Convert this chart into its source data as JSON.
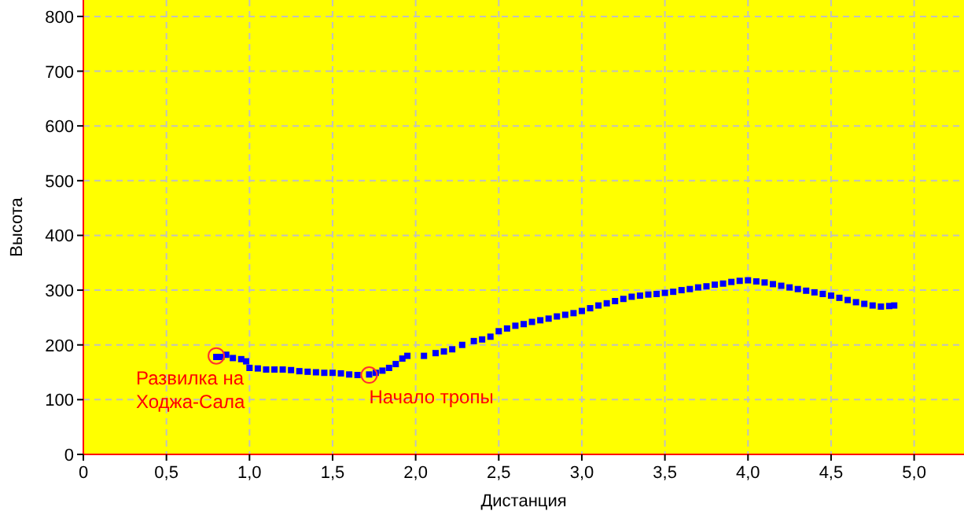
{
  "chart_data": {
    "type": "scatter",
    "xlabel": "Дистанция",
    "ylabel": "Высота",
    "xlim": [
      0,
      5.3
    ],
    "ylim": [
      0,
      830
    ],
    "xticks": [
      0,
      {
        "value": 0.5,
        "label": "0,5"
      },
      {
        "value": 1,
        "label": "1,0"
      },
      {
        "value": 1.5,
        "label": "1,5"
      },
      {
        "value": 2,
        "label": "2,0"
      },
      {
        "value": 2.5,
        "label": "2,5"
      },
      {
        "value": 3,
        "label": "3,0"
      },
      {
        "value": 3.5,
        "label": "3,5"
      },
      {
        "value": 4,
        "label": "4,0"
      },
      {
        "value": 4.5,
        "label": "4,5"
      },
      {
        "value": 5,
        "label": "5,0"
      }
    ],
    "yticks": [
      0,
      100,
      200,
      300,
      400,
      500,
      600,
      700,
      800
    ],
    "grid": true,
    "marker": "square",
    "x": [
      0.8,
      0.83,
      0.86,
      0.9,
      0.95,
      0.98,
      1.0,
      1.05,
      1.1,
      1.15,
      1.2,
      1.25,
      1.3,
      1.35,
      1.4,
      1.45,
      1.5,
      1.55,
      1.6,
      1.65,
      1.72,
      1.76,
      1.8,
      1.84,
      1.88,
      1.92,
      1.95,
      2.05,
      2.12,
      2.17,
      2.22,
      2.28,
      2.35,
      2.4,
      2.45,
      2.5,
      2.55,
      2.6,
      2.65,
      2.7,
      2.75,
      2.8,
      2.85,
      2.9,
      2.95,
      3.0,
      3.05,
      3.1,
      3.15,
      3.2,
      3.25,
      3.3,
      3.35,
      3.4,
      3.45,
      3.5,
      3.55,
      3.6,
      3.65,
      3.7,
      3.75,
      3.8,
      3.85,
      3.9,
      3.95,
      4.0,
      4.05,
      4.1,
      4.15,
      4.2,
      4.25,
      4.3,
      4.35,
      4.4,
      4.45,
      4.5,
      4.55,
      4.6,
      4.65,
      4.7,
      4.75,
      4.8,
      4.85,
      4.88
    ],
    "series": [
      {
        "color": "#0000ff",
        "values": [
          178,
          178,
          182,
          176,
          174,
          170,
          158,
          157,
          155,
          155,
          155,
          154,
          152,
          151,
          150,
          149,
          149,
          148,
          146,
          145,
          146,
          149,
          153,
          158,
          165,
          175,
          180,
          180,
          185,
          188,
          192,
          200,
          207,
          210,
          215,
          225,
          230,
          235,
          238,
          242,
          245,
          248,
          252,
          255,
          258,
          262,
          267,
          272,
          276,
          280,
          284,
          288,
          290,
          292,
          293,
          295,
          297,
          300,
          302,
          305,
          307,
          310,
          312,
          315,
          317,
          318,
          316,
          314,
          311,
          308,
          305,
          302,
          299,
          296,
          293,
          290,
          286,
          282,
          278,
          275,
          272,
          270,
          271,
          272
        ]
      }
    ],
    "annotations": [
      {
        "text": "Развилка на Ходжа-Сала",
        "x": 0.8,
        "y": 180
      },
      {
        "text": "Начало тропы",
        "x": 1.72,
        "y": 145
      }
    ]
  }
}
